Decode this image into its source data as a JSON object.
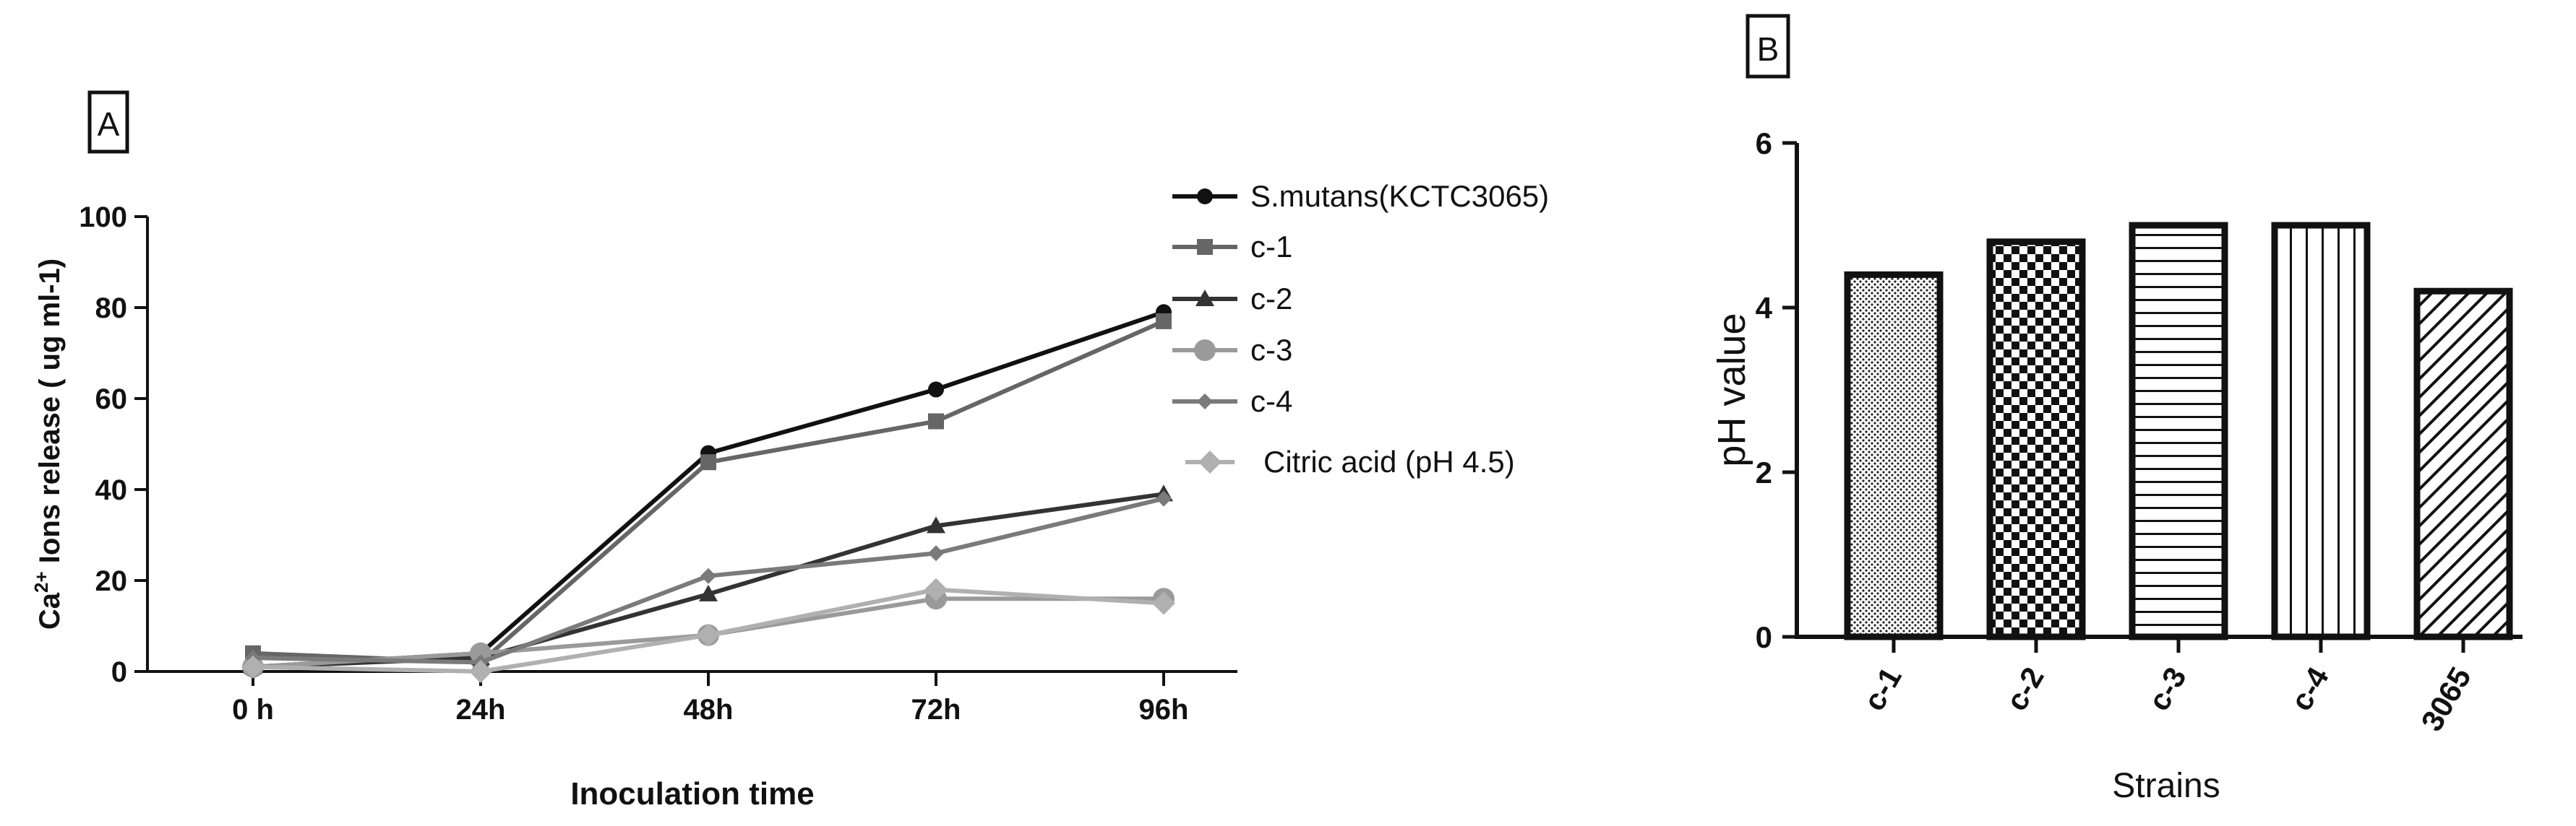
{
  "chart_data": [
    {
      "type": "line",
      "panel_label": "A",
      "xlabel": "Inoculation  time",
      "ylabel_main": "Ca",
      "ylabel_sup": "2+",
      "ylabel_rest": " Ions release ( ug ml-1)",
      "categories": [
        "0 h",
        "24h",
        "48h",
        "72h",
        "96h"
      ],
      "ylim": [
        0,
        100
      ],
      "yticks": [
        "0",
        "20",
        "40",
        "60",
        "80",
        "100"
      ],
      "legend_position": "right",
      "grid": false,
      "series": [
        {
          "name": "S.mutans(KCTC3065)",
          "values": [
            1,
            4,
            48,
            62,
            79
          ],
          "color": "#111111",
          "marker": "circle"
        },
        {
          "name": "c-1",
          "values": [
            4,
            2,
            46,
            55,
            77
          ],
          "color": "#666666",
          "marker": "square"
        },
        {
          "name": "c-2",
          "values": [
            1,
            3,
            17,
            32,
            39
          ],
          "color": "#333333",
          "marker": "triangle"
        },
        {
          "name": "c-3",
          "values": [
            1,
            4,
            8,
            16,
            16
          ],
          "color": "#9a9a9a",
          "marker": "large-circle"
        },
        {
          "name": "c-4",
          "values": [
            3,
            2,
            21,
            26,
            38
          ],
          "color": "#7a7a7a",
          "marker": "diamond"
        },
        {
          "name": "Citric acid (pH 4.5)",
          "values": [
            1,
            0,
            8,
            18,
            15
          ],
          "color": "#b0b0b0",
          "marker": "large-diamond"
        }
      ]
    },
    {
      "type": "bar",
      "panel_label": "B",
      "xlabel": "Strains",
      "ylabel": "pH  value",
      "categories": [
        "c-1",
        "c-2",
        "c-3",
        "c-4",
        "3065"
      ],
      "values": [
        4.4,
        4.8,
        5.0,
        5.0,
        4.2
      ],
      "patterns": [
        "dots",
        "checker",
        "horizontal-lines",
        "vertical-lines",
        "diagonal-lines"
      ],
      "ylim": [
        0,
        6
      ],
      "yticks": [
        "0",
        "2",
        "4",
        "6"
      ],
      "grid": false
    }
  ]
}
